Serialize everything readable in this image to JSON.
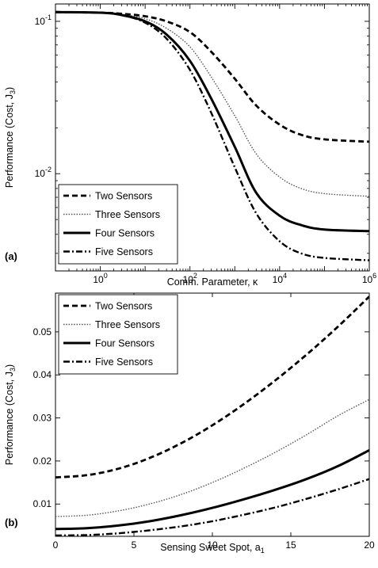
{
  "chart_data": [
    {
      "panel_label": "(a)",
      "type": "line",
      "xscale": "log",
      "yscale": "log",
      "xlabel": "Comm. Parameter, κ",
      "ylabel": "Performance (Cost, J",
      "ylabel_sub": "3",
      "ylabel_close": ")",
      "xlim": [
        0.1,
        1000000
      ],
      "ylim": [
        0.0023,
        0.13
      ],
      "x_ticks": [
        {
          "v": 1,
          "base": "10",
          "exp": "0"
        },
        {
          "v": 100,
          "base": "10",
          "exp": "2"
        },
        {
          "v": 10000,
          "base": "10",
          "exp": "4"
        },
        {
          "v": 1000000,
          "base": "10",
          "exp": "6"
        }
      ],
      "y_ticks": [
        {
          "v": 0.01,
          "base": "10",
          "exp": "-2"
        },
        {
          "v": 0.1,
          "base": "10",
          "exp": "-1"
        }
      ],
      "legend_position": "bottom-left",
      "grid": false,
      "series": [
        {
          "name": "Two Sensors",
          "style": "dashed",
          "points": [
            [
              0.1,
              0.115
            ],
            [
              1,
              0.114
            ],
            [
              3,
              0.112
            ],
            [
              10,
              0.108
            ],
            [
              30,
              0.1
            ],
            [
              100,
              0.085
            ],
            [
              300,
              0.063
            ],
            [
              1000,
              0.042
            ],
            [
              3000,
              0.028
            ],
            [
              10000,
              0.021
            ],
            [
              30000,
              0.018
            ],
            [
              100000,
              0.0168
            ],
            [
              1000000,
              0.0162
            ]
          ]
        },
        {
          "name": "Three Sensors",
          "style": "dotted",
          "points": [
            [
              0.1,
              0.115
            ],
            [
              1,
              0.114
            ],
            [
              3,
              0.111
            ],
            [
              10,
              0.104
            ],
            [
              30,
              0.09
            ],
            [
              100,
              0.068
            ],
            [
              300,
              0.043
            ],
            [
              1000,
              0.024
            ],
            [
              3000,
              0.0135
            ],
            [
              10000,
              0.0095
            ],
            [
              30000,
              0.008
            ],
            [
              100000,
              0.0074
            ],
            [
              1000000,
              0.0071
            ]
          ]
        },
        {
          "name": "Four Sensors",
          "style": "solid",
          "points": [
            [
              0.1,
              0.115
            ],
            [
              1,
              0.114
            ],
            [
              3,
              0.11
            ],
            [
              10,
              0.1
            ],
            [
              30,
              0.082
            ],
            [
              100,
              0.055
            ],
            [
              300,
              0.031
            ],
            [
              1000,
              0.015
            ],
            [
              3000,
              0.0075
            ],
            [
              10000,
              0.0053
            ],
            [
              30000,
              0.0046
            ],
            [
              100000,
              0.0043
            ],
            [
              1000000,
              0.0042
            ]
          ]
        },
        {
          "name": "Five Sensors",
          "style": "dashdot",
          "points": [
            [
              0.1,
              0.115
            ],
            [
              1,
              0.114
            ],
            [
              3,
              0.11
            ],
            [
              10,
              0.098
            ],
            [
              30,
              0.077
            ],
            [
              100,
              0.048
            ],
            [
              300,
              0.025
            ],
            [
              1000,
              0.011
            ],
            [
              3000,
              0.0055
            ],
            [
              10000,
              0.0036
            ],
            [
              30000,
              0.003
            ],
            [
              100000,
              0.0028
            ],
            [
              1000000,
              0.0027
            ]
          ]
        }
      ]
    },
    {
      "panel_label": "(b)",
      "type": "line",
      "xscale": "linear",
      "yscale": "linear",
      "xlabel": "Sensing Sweet Spot, a",
      "xlabel_sub": "1",
      "ylabel": "Performance (Cost, J",
      "ylabel_sub": "3",
      "ylabel_close": ")",
      "xlim": [
        0,
        20
      ],
      "ylim": [
        0.0025,
        0.059
      ],
      "x_ticks": [
        {
          "v": 0,
          "label": "0"
        },
        {
          "v": 5,
          "label": "5"
        },
        {
          "v": 10,
          "label": "10"
        },
        {
          "v": 15,
          "label": "15"
        },
        {
          "v": 20,
          "label": "20"
        }
      ],
      "y_ticks": [
        {
          "v": 0.01,
          "label": "0.01"
        },
        {
          "v": 0.02,
          "label": "0.02"
        },
        {
          "v": 0.03,
          "label": "0.03"
        },
        {
          "v": 0.04,
          "label": "0.04"
        },
        {
          "v": 0.05,
          "label": "0.05"
        }
      ],
      "legend_position": "top-left",
      "grid": false,
      "series": [
        {
          "name": "Two Sensors",
          "style": "dashed",
          "points": [
            [
              0,
              0.0162
            ],
            [
              2,
              0.0167
            ],
            [
              4,
              0.0182
            ],
            [
              6,
              0.0207
            ],
            [
              8,
              0.0241
            ],
            [
              10,
              0.0283
            ],
            [
              12,
              0.0332
            ],
            [
              14,
              0.0387
            ],
            [
              16,
              0.0447
            ],
            [
              18,
              0.0512
            ],
            [
              20,
              0.0582
            ]
          ]
        },
        {
          "name": "Three Sensors",
          "style": "dotted",
          "points": [
            [
              0,
              0.0071
            ],
            [
              2,
              0.0074
            ],
            [
              4,
              0.0084
            ],
            [
              6,
              0.01
            ],
            [
              8,
              0.0122
            ],
            [
              10,
              0.015
            ],
            [
              12,
              0.0183
            ],
            [
              14,
              0.022
            ],
            [
              16,
              0.0261
            ],
            [
              18,
              0.0305
            ],
            [
              20,
              0.0343
            ]
          ]
        },
        {
          "name": "Four Sensors",
          "style": "solid",
          "points": [
            [
              0,
              0.0042
            ],
            [
              2,
              0.0044
            ],
            [
              4,
              0.005
            ],
            [
              6,
              0.006
            ],
            [
              8,
              0.0074
            ],
            [
              10,
              0.0091
            ],
            [
              12,
              0.0111
            ],
            [
              14,
              0.0133
            ],
            [
              16,
              0.0158
            ],
            [
              18,
              0.0188
            ],
            [
              20,
              0.0225
            ]
          ]
        },
        {
          "name": "Five Sensors",
          "style": "dashdot",
          "points": [
            [
              0,
              0.0027
            ],
            [
              2,
              0.0028
            ],
            [
              4,
              0.0032
            ],
            [
              6,
              0.0039
            ],
            [
              8,
              0.0048
            ],
            [
              10,
              0.006
            ],
            [
              12,
              0.0075
            ],
            [
              14,
              0.0092
            ],
            [
              16,
              0.0112
            ],
            [
              18,
              0.0134
            ],
            [
              20,
              0.0158
            ]
          ]
        }
      ]
    }
  ]
}
